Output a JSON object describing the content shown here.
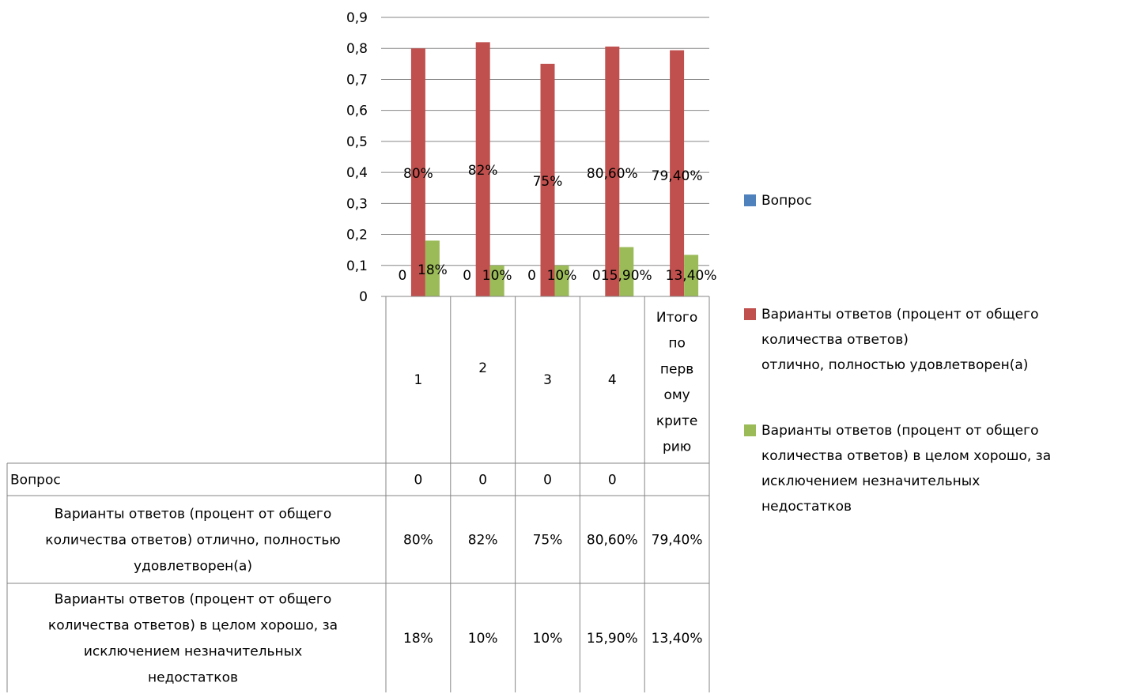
{
  "chart_data": {
    "type": "bar",
    "categories": [
      "1",
      "2",
      "3",
      "4",
      "Итого по первому критерию"
    ],
    "category_label_lines": [
      [
        "1"
      ],
      [
        "2"
      ],
      [
        "3"
      ],
      [
        "4"
      ],
      [
        "Итого",
        "по",
        "перв",
        "ому",
        "крите",
        "рию"
      ]
    ],
    "ylim": [
      0,
      0.9
    ],
    "yticks": [
      "0",
      "0,1",
      "0,2",
      "0,3",
      "0,4",
      "0,5",
      "0,6",
      "0,7",
      "0,8",
      "0,9"
    ],
    "ytick_values": [
      0,
      0.1,
      0.2,
      0.3,
      0.4,
      0.5,
      0.6,
      0.7,
      0.8,
      0.9
    ],
    "grid": true,
    "legend_position": "right",
    "series": [
      {
        "name": "Вопрос",
        "legend_lines": [
          "Вопрос"
        ],
        "table_lines": [
          "Вопрос"
        ],
        "color": "#4F81BD",
        "values": [
          0,
          0,
          0,
          0,
          null
        ],
        "labels": [
          "0",
          "0",
          "0",
          "0",
          ""
        ]
      },
      {
        "name": "Варианты ответов (процент от общего количества ответов) отлично, полностью удовлетворен(а)",
        "legend_lines": [
          "Варианты ответов (процент от общего",
          "количества ответов)",
          "отлично, полностью удовлетворен(а)"
        ],
        "table_lines": [
          "Варианты ответов (процент от общего",
          "количества ответов) отлично, полностью",
          "удовлетворен(а)"
        ],
        "color": "#C0504D",
        "values": [
          0.8,
          0.82,
          0.75,
          0.806,
          0.794
        ],
        "labels": [
          "80%",
          "82%",
          "75%",
          "80,60%",
          "79,40%"
        ]
      },
      {
        "name": "Варианты ответов (процент от общего количества ответов) в целом хорошо, за исключением незначительных недостатков",
        "legend_lines": [
          "Варианты ответов (процент от общего",
          "количества ответов) в целом хорошо, за",
          "исключением незначительных",
          "недостатков"
        ],
        "table_lines": [
          "Варианты ответов (процент от общего",
          "количества ответов) в целом хорошо, за",
          "исключением незначительных",
          "недостатков"
        ],
        "color": "#9BBB59",
        "values": [
          0.18,
          0.1,
          0.1,
          0.159,
          0.134
        ],
        "labels": [
          "18%",
          "10%",
          "10%",
          "15,90%",
          "13,40%"
        ]
      }
    ]
  }
}
